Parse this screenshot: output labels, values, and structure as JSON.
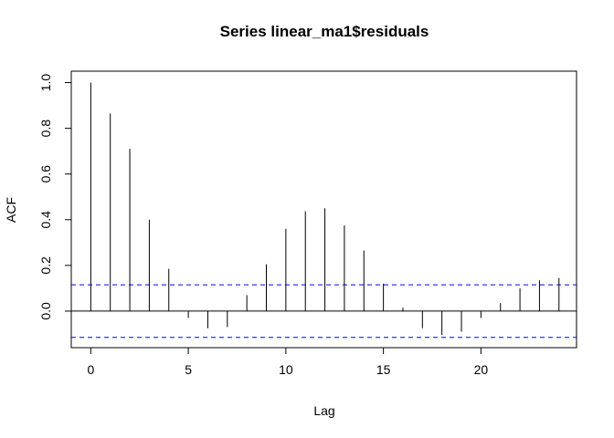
{
  "chart_data": {
    "type": "bar",
    "title": "Series  linear_ma1$residuals",
    "xlabel": "Lag",
    "ylabel": "ACF",
    "xlim": [
      -1,
      24.9
    ],
    "ylim": [
      -0.16,
      1.05
    ],
    "x_ticks": [
      "0",
      "5",
      "10",
      "15",
      "20"
    ],
    "y_ticks": [
      "0.0",
      "0.2",
      "0.4",
      "0.6",
      "0.8",
      "1.0"
    ],
    "grid": false,
    "lags": [
      0,
      1,
      2,
      3,
      4,
      5,
      6,
      7,
      8,
      9,
      10,
      11,
      12,
      13,
      14,
      15,
      16,
      17,
      18,
      19,
      20,
      21,
      22,
      23,
      24
    ],
    "acf": [
      1.0,
      0.865,
      0.71,
      0.4,
      0.185,
      -0.03,
      -0.075,
      -0.07,
      0.07,
      0.205,
      0.36,
      0.437,
      0.45,
      0.375,
      0.265,
      0.12,
      0.015,
      -0.075,
      -0.105,
      -0.09,
      -0.03,
      0.035,
      0.1,
      0.135,
      0.145
    ],
    "confidence_bound": 0.115,
    "colors": {
      "spikes": "#000000",
      "bounds": "#0000ff",
      "zero_line": "#000000"
    }
  }
}
